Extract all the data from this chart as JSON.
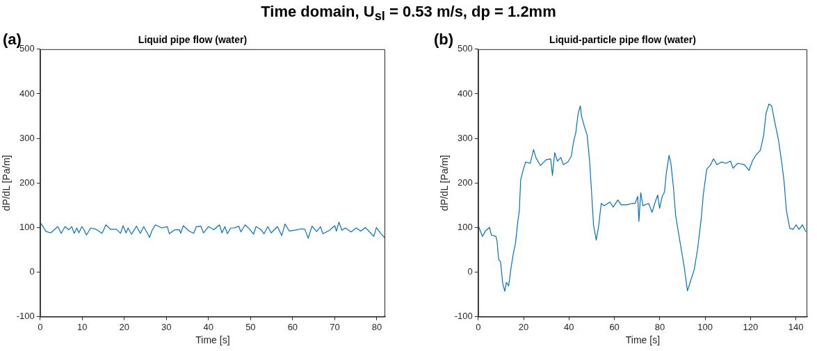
{
  "chart_data": [
    {
      "type": "line",
      "title": "Liquid pipe flow (water)",
      "xlabel": "Time [s]",
      "ylabel": "dP/dL [Pa/m]",
      "annotations": [
        "Time domain, U$_{sl}$ = 0.53 m/s, dp = 1.2mm",
        "(a)"
      ],
      "xlim": [
        0,
        82
      ],
      "xticks": [
        0,
        10,
        20,
        30,
        40,
        50,
        60,
        70,
        80
      ],
      "ylim": [
        -100,
        500
      ],
      "yticks": [
        -100,
        0,
        100,
        200,
        300,
        400,
        500
      ],
      "grid": false,
      "legend": false,
      "marker": "none",
      "line_style": "solid",
      "series": [
        {
          "color": "#0072bd",
          "x": [
            0.2,
            1.4,
            2.5,
            4.2,
            5.0,
            5.9,
            6.8,
            7.5,
            8.1,
            8.7,
            9.2,
            9.9,
            10.3,
            11.0,
            12.0,
            13.3,
            14.7,
            15.6,
            16.7,
            18.1,
            19.1,
            19.7,
            20.4,
            20.9,
            21.7,
            22.9,
            23.8,
            24.6,
            25.2,
            26.0,
            26.6,
            27.4,
            28.9,
            30.2,
            30.7,
            32.0,
            33.1,
            33.4,
            34.0,
            35.4,
            36.5,
            37.1,
            38.2,
            38.8,
            40.0,
            41.3,
            42.6,
            43.2,
            43.9,
            44.5,
            45.3,
            46.2,
            47.2,
            47.7,
            48.7,
            49.8,
            50.7,
            51.3,
            52.4,
            53.2,
            54.1,
            54.9,
            56.4,
            57.4,
            58.2,
            59.2,
            60.6,
            62.0,
            62.9,
            63.7,
            64.6,
            65.7,
            66.6,
            67.2,
            68.8,
            70.0,
            70.4,
            71.0,
            71.7,
            72.5,
            73.9,
            75.1,
            76.2,
            77.3,
            78.5,
            79.3,
            79.9,
            81.0,
            82.0
          ],
          "values": [
            109,
            91,
            88,
            102,
            87,
            102,
            95,
            102,
            87,
            99,
            88,
            102,
            97,
            83,
            99,
            96,
            87,
            106,
            96,
            96,
            87,
            104,
            88,
            99,
            85,
            103,
            87,
            102,
            92,
            78,
            94,
            106,
            99,
            102,
            86,
            95,
            95,
            87,
            104,
            92,
            87,
            102,
            103,
            88,
            102,
            95,
            106,
            88,
            102,
            86,
            99,
            99,
            103,
            90,
            106,
            96,
            85,
            102,
            96,
            86,
            102,
            88,
            102,
            82,
            108,
            92,
            94,
            97,
            96,
            76,
            103,
            91,
            102,
            86,
            94,
            104,
            92,
            112,
            94,
            99,
            90,
            99,
            92,
            100,
            88,
            80,
            100,
            86,
            76
          ]
        }
      ]
    },
    {
      "type": "line",
      "title": "Liquid-particle pipe flow (water)",
      "xlabel": "Time [s]",
      "ylabel": "dP/dL [Pa/m]",
      "annotations": [
        "(b)"
      ],
      "xlim": [
        0,
        145
      ],
      "xticks": [
        0,
        20,
        40,
        60,
        80,
        100,
        120,
        140
      ],
      "ylim": [
        -100,
        500
      ],
      "yticks": [
        -100,
        0,
        100,
        200,
        300,
        400,
        500
      ],
      "grid": false,
      "legend": false,
      "marker": "none",
      "line_style": "solid",
      "series": [
        {
          "color": "#0072bd",
          "x": [
            0.3,
            1.8,
            3.3,
            5,
            5.8,
            7.8,
            8.3,
            9.0,
            9.8,
            10.8,
            11.7,
            12.4,
            13.4,
            14.4,
            15.4,
            16.4,
            17.4,
            18.1,
            18.7,
            19.9,
            20.9,
            22.9,
            24.4,
            25.4,
            27.4,
            29.9,
            31.9,
            32.7,
            33.7,
            34.9,
            36.4,
            37.5,
            39.5,
            41,
            42,
            43,
            44,
            45,
            45.5,
            46.8,
            48,
            49,
            50,
            50.8,
            52,
            53,
            54.2,
            55.5,
            58,
            59.5,
            61.5,
            63,
            65.6,
            67.6,
            69.1,
            70.3,
            70.8,
            71.6,
            72.6,
            75.1,
            76.6,
            78.1,
            79.1,
            79.9,
            81.1,
            82.1,
            82.9,
            84.1,
            84.9,
            86,
            87,
            88.2,
            89.4,
            90.7,
            92.2,
            93.7,
            95.2,
            96.7,
            98.2,
            99.2,
            100.7,
            102.2,
            103.7,
            105.2,
            107.2,
            109.2,
            111.2,
            112.3,
            114.3,
            117.3,
            119.3,
            120.8,
            122.3,
            124.3,
            125.8,
            126.8,
            128.1,
            129.3,
            130.8,
            132.3,
            133.8,
            134.8,
            135.8,
            137.3,
            138.8,
            140.1,
            141.4,
            142.9,
            144.4
          ],
          "values": [
            101,
            80,
            93,
            100,
            83,
            80,
            69,
            28,
            24,
            -26,
            -43,
            -23,
            -31,
            8,
            40,
            64,
            112,
            138,
            207,
            231,
            247,
            244,
            275,
            257,
            239,
            252,
            254,
            217,
            268,
            249,
            257,
            241,
            247,
            260,
            292,
            313,
            355,
            373,
            350,
            326,
            307,
            254,
            175,
            106,
            72,
            101,
            154,
            149,
            157,
            146,
            162,
            151,
            151,
            154,
            154,
            170,
            114,
            178,
            149,
            154,
            134,
            159,
            173,
            143,
            170,
            180,
            223,
            262,
            244,
            191,
            127,
            90,
            53,
            14,
            -42,
            -18,
            6,
            53,
            117,
            175,
            231,
            239,
            254,
            241,
            247,
            244,
            249,
            233,
            244,
            241,
            228,
            249,
            262,
            273,
            307,
            355,
            377,
            373,
            334,
            297,
            244,
            202,
            138,
            98,
            96,
            106,
            96,
            106,
            90
          ]
        }
      ]
    }
  ]
}
